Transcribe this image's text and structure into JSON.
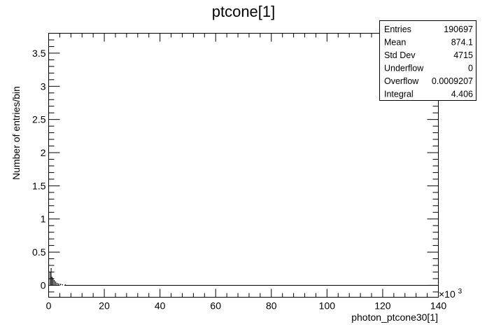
{
  "chart_data": {
    "type": "histogram",
    "title": "ptcone[1]",
    "xlabel": "photon_ptcone30[1]",
    "ylabel": "Number of entries/bin",
    "x_exponent_label": "×10",
    "x_exponent_power": "3",
    "xlim": [
      0,
      140
    ],
    "ylim": [
      -0.18,
      3.8
    ],
    "x_ticks": [
      {
        "value": 0,
        "label": "0"
      },
      {
        "value": 20,
        "label": "20"
      },
      {
        "value": 40,
        "label": "40"
      },
      {
        "value": 60,
        "label": "60"
      },
      {
        "value": 80,
        "label": "80"
      },
      {
        "value": 100,
        "label": "100"
      },
      {
        "value": 120,
        "label": "120"
      },
      {
        "value": 140,
        "label": "140"
      }
    ],
    "y_ticks": [
      {
        "value": 0,
        "label": "0"
      },
      {
        "value": 0.5,
        "label": "0.5"
      },
      {
        "value": 1,
        "label": "1"
      },
      {
        "value": 1.5,
        "label": "1.5"
      },
      {
        "value": 2,
        "label": "2"
      },
      {
        "value": 2.5,
        "label": "2.5"
      },
      {
        "value": 3,
        "label": "3"
      },
      {
        "value": 3.5,
        "label": "3.5"
      }
    ],
    "points": [
      {
        "x": 0.5,
        "y": 0.2
      },
      {
        "x": 0.9,
        "y": 0.25
      },
      {
        "x": 1.2,
        "y": 0.12
      },
      {
        "x": 1.6,
        "y": 0.1
      },
      {
        "x": 2.0,
        "y": 0.07
      },
      {
        "x": 2.5,
        "y": 0.05
      },
      {
        "x": 3.0,
        "y": 0.03
      },
      {
        "x": 3.6,
        "y": 0.02
      },
      {
        "x": 4.3,
        "y": 0.015
      },
      {
        "x": 5.0,
        "y": 0.01
      },
      {
        "x": 6.0,
        "y": 0.005
      }
    ],
    "stats": [
      {
        "label": "Entries",
        "value": "190697"
      },
      {
        "label": "Mean",
        "value": "874.1"
      },
      {
        "label": "Std Dev",
        "value": "4715"
      },
      {
        "label": "Underflow",
        "value": "0"
      },
      {
        "label": "Overflow",
        "value": "0.0009207"
      },
      {
        "label": "Integral",
        "value": "4.406"
      }
    ]
  }
}
